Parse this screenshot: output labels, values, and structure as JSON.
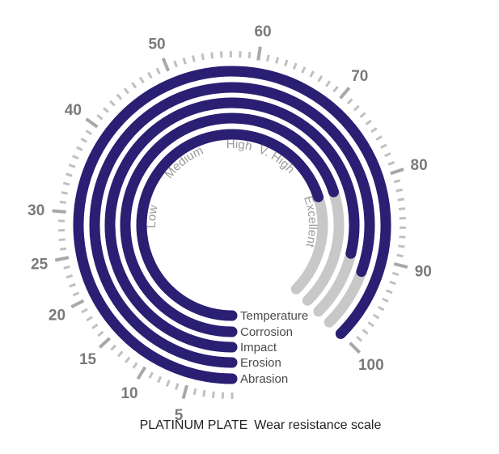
{
  "chart_data": {
    "type": "radial-bar",
    "title": "PLATINUM PLATE",
    "subtitle": "Wear resistance scale",
    "scale": {
      "tick_labels": [
        "5",
        "10",
        "15",
        "20",
        "25",
        "30",
        "40",
        "50",
        "60",
        "70",
        "80",
        "90",
        "100"
      ],
      "tick_values": [
        5,
        10,
        15,
        20,
        25,
        30,
        40,
        50,
        60,
        70,
        80,
        90,
        100
      ]
    },
    "bands": [
      "Low",
      "Medium",
      "High",
      "V. High",
      "Excellent"
    ],
    "series": [
      {
        "name": "Temperature",
        "value": 80,
        "max": 100
      },
      {
        "name": "Corrosion",
        "value": 80,
        "max": 100
      },
      {
        "name": "Impact",
        "value": 90,
        "max": 100
      },
      {
        "name": "Erosion",
        "value": 92,
        "max": 100
      },
      {
        "name": "Abrasion",
        "value": 100,
        "max": 100
      }
    ],
    "colors": {
      "bar": "#2a1f73",
      "track": "#c8c8c8",
      "scale": "#c0c0c0",
      "scale_major": "#a8a8a8"
    }
  }
}
